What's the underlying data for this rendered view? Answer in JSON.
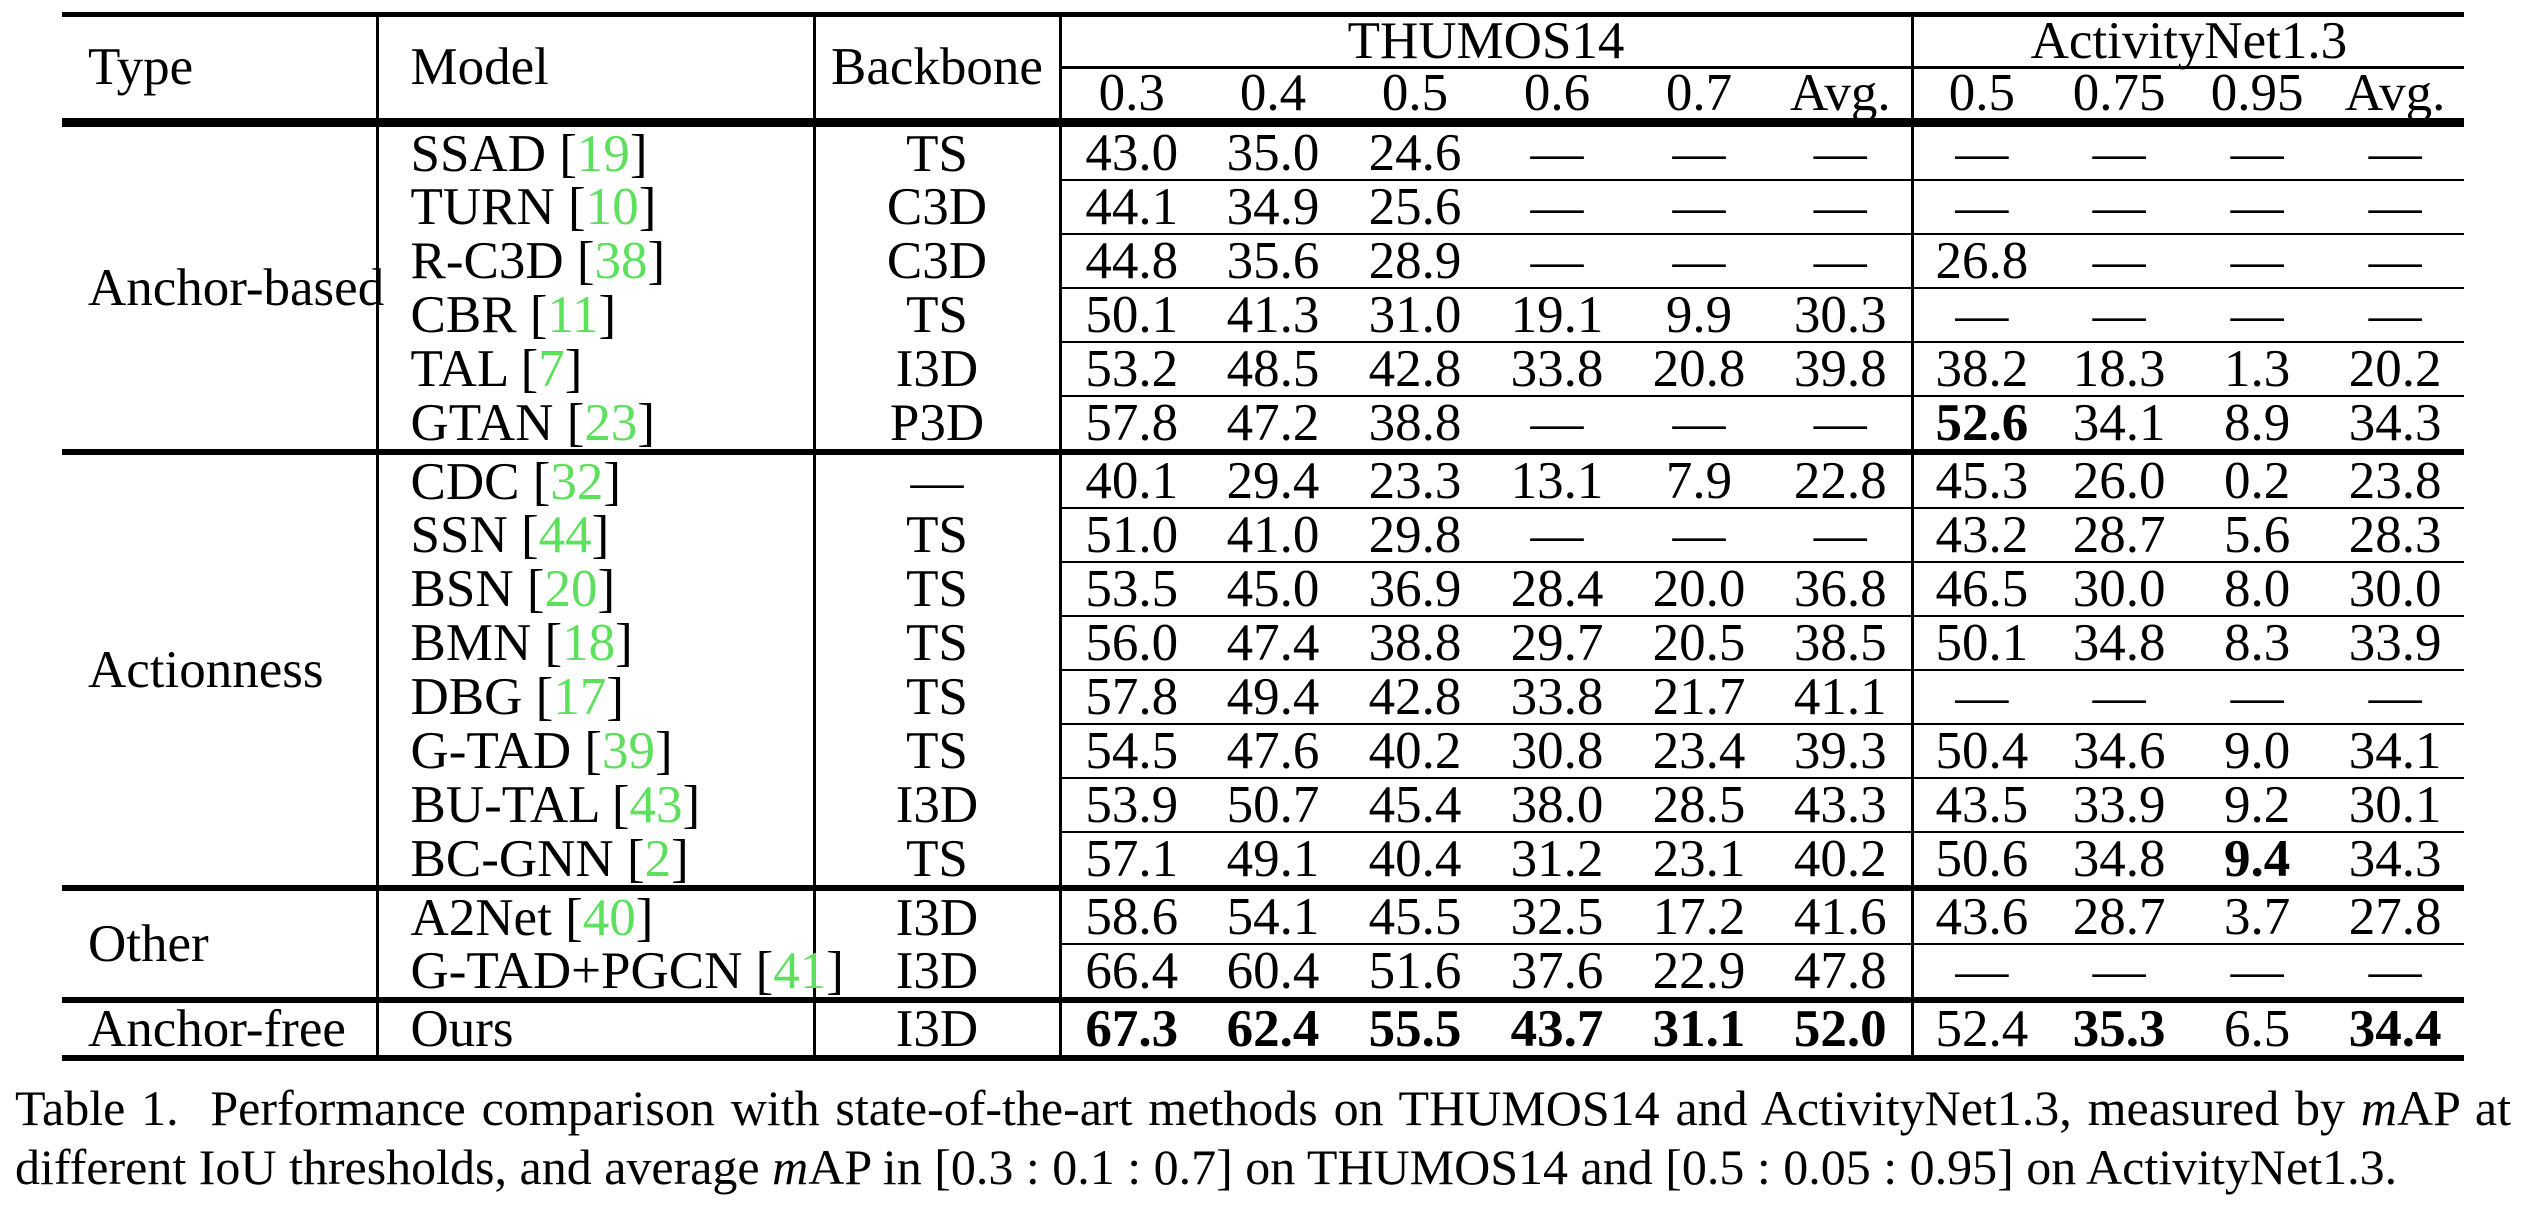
{
  "colors": {
    "citation_green": "#5de05d"
  },
  "table": {
    "headers": {
      "type": "Type",
      "model": "Model",
      "backbone": "Backbone",
      "groups": [
        {
          "label": "THUMOS14",
          "cols": [
            "0.3",
            "0.4",
            "0.5",
            "0.6",
            "0.7",
            "Avg."
          ]
        },
        {
          "label": "ActivityNet1.3",
          "cols": [
            "0.5",
            "0.75",
            "0.95",
            "Avg."
          ]
        }
      ]
    },
    "sections": [
      {
        "type": "Anchor-based",
        "rows": [
          {
            "model": "SSAD",
            "cite": "19",
            "backbone": "TS",
            "thumos": [
              "43.0",
              "35.0",
              "24.6",
              "—",
              "—",
              "—"
            ],
            "anet": [
              "—",
              "—",
              "—",
              "—"
            ],
            "bt": [],
            "ba": []
          },
          {
            "model": "TURN",
            "cite": "10",
            "backbone": "C3D",
            "thumos": [
              "44.1",
              "34.9",
              "25.6",
              "—",
              "—",
              "—"
            ],
            "anet": [
              "—",
              "—",
              "—",
              "—"
            ],
            "bt": [],
            "ba": []
          },
          {
            "model": "R-C3D",
            "cite": "38",
            "backbone": "C3D",
            "thumos": [
              "44.8",
              "35.6",
              "28.9",
              "—",
              "—",
              "—"
            ],
            "anet": [
              "26.8",
              "—",
              "—",
              "—"
            ],
            "bt": [],
            "ba": []
          },
          {
            "model": "CBR",
            "cite": "11",
            "backbone": "TS",
            "thumos": [
              "50.1",
              "41.3",
              "31.0",
              "19.1",
              "9.9",
              "30.3"
            ],
            "anet": [
              "—",
              "—",
              "—",
              "—"
            ],
            "bt": [],
            "ba": []
          },
          {
            "model": "TAL",
            "cite": "7",
            "backbone": "I3D",
            "thumos": [
              "53.2",
              "48.5",
              "42.8",
              "33.8",
              "20.8",
              "39.8"
            ],
            "anet": [
              "38.2",
              "18.3",
              "1.3",
              "20.2"
            ],
            "bt": [],
            "ba": []
          },
          {
            "model": "GTAN",
            "cite": "23",
            "backbone": "P3D",
            "thumos": [
              "57.8",
              "47.2",
              "38.8",
              "—",
              "—",
              "—"
            ],
            "anet": [
              "52.6",
              "34.1",
              "8.9",
              "34.3"
            ],
            "bt": [],
            "ba": [
              0
            ]
          }
        ]
      },
      {
        "type": "Actionness",
        "rows": [
          {
            "model": "CDC",
            "cite": "32",
            "backbone": "—",
            "thumos": [
              "40.1",
              "29.4",
              "23.3",
              "13.1",
              "7.9",
              "22.8"
            ],
            "anet": [
              "45.3",
              "26.0",
              "0.2",
              "23.8"
            ],
            "bt": [],
            "ba": []
          },
          {
            "model": "SSN",
            "cite": "44",
            "backbone": "TS",
            "thumos": [
              "51.0",
              "41.0",
              "29.8",
              "—",
              "—",
              "—"
            ],
            "anet": [
              "43.2",
              "28.7",
              "5.6",
              "28.3"
            ],
            "bt": [],
            "ba": []
          },
          {
            "model": "BSN",
            "cite": "20",
            "backbone": "TS",
            "thumos": [
              "53.5",
              "45.0",
              "36.9",
              "28.4",
              "20.0",
              "36.8"
            ],
            "anet": [
              "46.5",
              "30.0",
              "8.0",
              "30.0"
            ],
            "bt": [],
            "ba": []
          },
          {
            "model": "BMN",
            "cite": "18",
            "backbone": "TS",
            "thumos": [
              "56.0",
              "47.4",
              "38.8",
              "29.7",
              "20.5",
              "38.5"
            ],
            "anet": [
              "50.1",
              "34.8",
              "8.3",
              "33.9"
            ],
            "bt": [],
            "ba": []
          },
          {
            "model": "DBG",
            "cite": "17",
            "backbone": "TS",
            "thumos": [
              "57.8",
              "49.4",
              "42.8",
              "33.8",
              "21.7",
              "41.1"
            ],
            "anet": [
              "—",
              "—",
              "—",
              "—"
            ],
            "bt": [],
            "ba": []
          },
          {
            "model": "G-TAD",
            "cite": "39",
            "backbone": "TS",
            "thumos": [
              "54.5",
              "47.6",
              "40.2",
              "30.8",
              "23.4",
              "39.3"
            ],
            "anet": [
              "50.4",
              "34.6",
              "9.0",
              "34.1"
            ],
            "bt": [],
            "ba": []
          },
          {
            "model": "BU-TAL",
            "cite": "43",
            "backbone": "I3D",
            "thumos": [
              "53.9",
              "50.7",
              "45.4",
              "38.0",
              "28.5",
              "43.3"
            ],
            "anet": [
              "43.5",
              "33.9",
              "9.2",
              "30.1"
            ],
            "bt": [],
            "ba": []
          },
          {
            "model": "BC-GNN",
            "cite": "2",
            "backbone": "TS",
            "thumos": [
              "57.1",
              "49.1",
              "40.4",
              "31.2",
              "23.1",
              "40.2"
            ],
            "anet": [
              "50.6",
              "34.8",
              "9.4",
              "34.3"
            ],
            "bt": [],
            "ba": [
              2
            ]
          }
        ]
      },
      {
        "type": "Other",
        "rows": [
          {
            "model": "A2Net",
            "cite": "40",
            "backbone": "I3D",
            "thumos": [
              "58.6",
              "54.1",
              "45.5",
              "32.5",
              "17.2",
              "41.6"
            ],
            "anet": [
              "43.6",
              "28.7",
              "3.7",
              "27.8"
            ],
            "bt": [],
            "ba": []
          },
          {
            "model": "G-TAD+PGCN",
            "cite": "41",
            "backbone": "I3D",
            "thumos": [
              "66.4",
              "60.4",
              "51.6",
              "37.6",
              "22.9",
              "47.8"
            ],
            "anet": [
              "—",
              "—",
              "—",
              "—"
            ],
            "bt": [],
            "ba": []
          }
        ]
      },
      {
        "type": "Anchor-free",
        "rows": [
          {
            "model": "Ours",
            "cite": null,
            "backbone": "I3D",
            "thumos": [
              "67.3",
              "62.4",
              "55.5",
              "43.7",
              "31.1",
              "52.0"
            ],
            "anet": [
              "52.4",
              "35.3",
              "6.5",
              "34.4"
            ],
            "bt": [
              0,
              1,
              2,
              3,
              4,
              5
            ],
            "ba": [
              1,
              3
            ]
          }
        ]
      }
    ]
  },
  "caption": {
    "segments": [
      {
        "text": "Table 1.  Performance comparison with state-of-the-art methods on THUMOS14 and ActivityNet1.3, measured by "
      },
      {
        "text": "m",
        "italic": true
      },
      {
        "text": "AP at different IoU thresholds, and average "
      },
      {
        "text": "m",
        "italic": true
      },
      {
        "text": "AP in [0.3 : 0.1 : 0.7] on THUMOS14 and [0.5 : 0.05 : 0.95] on ActivityNet1.3."
      }
    ]
  }
}
